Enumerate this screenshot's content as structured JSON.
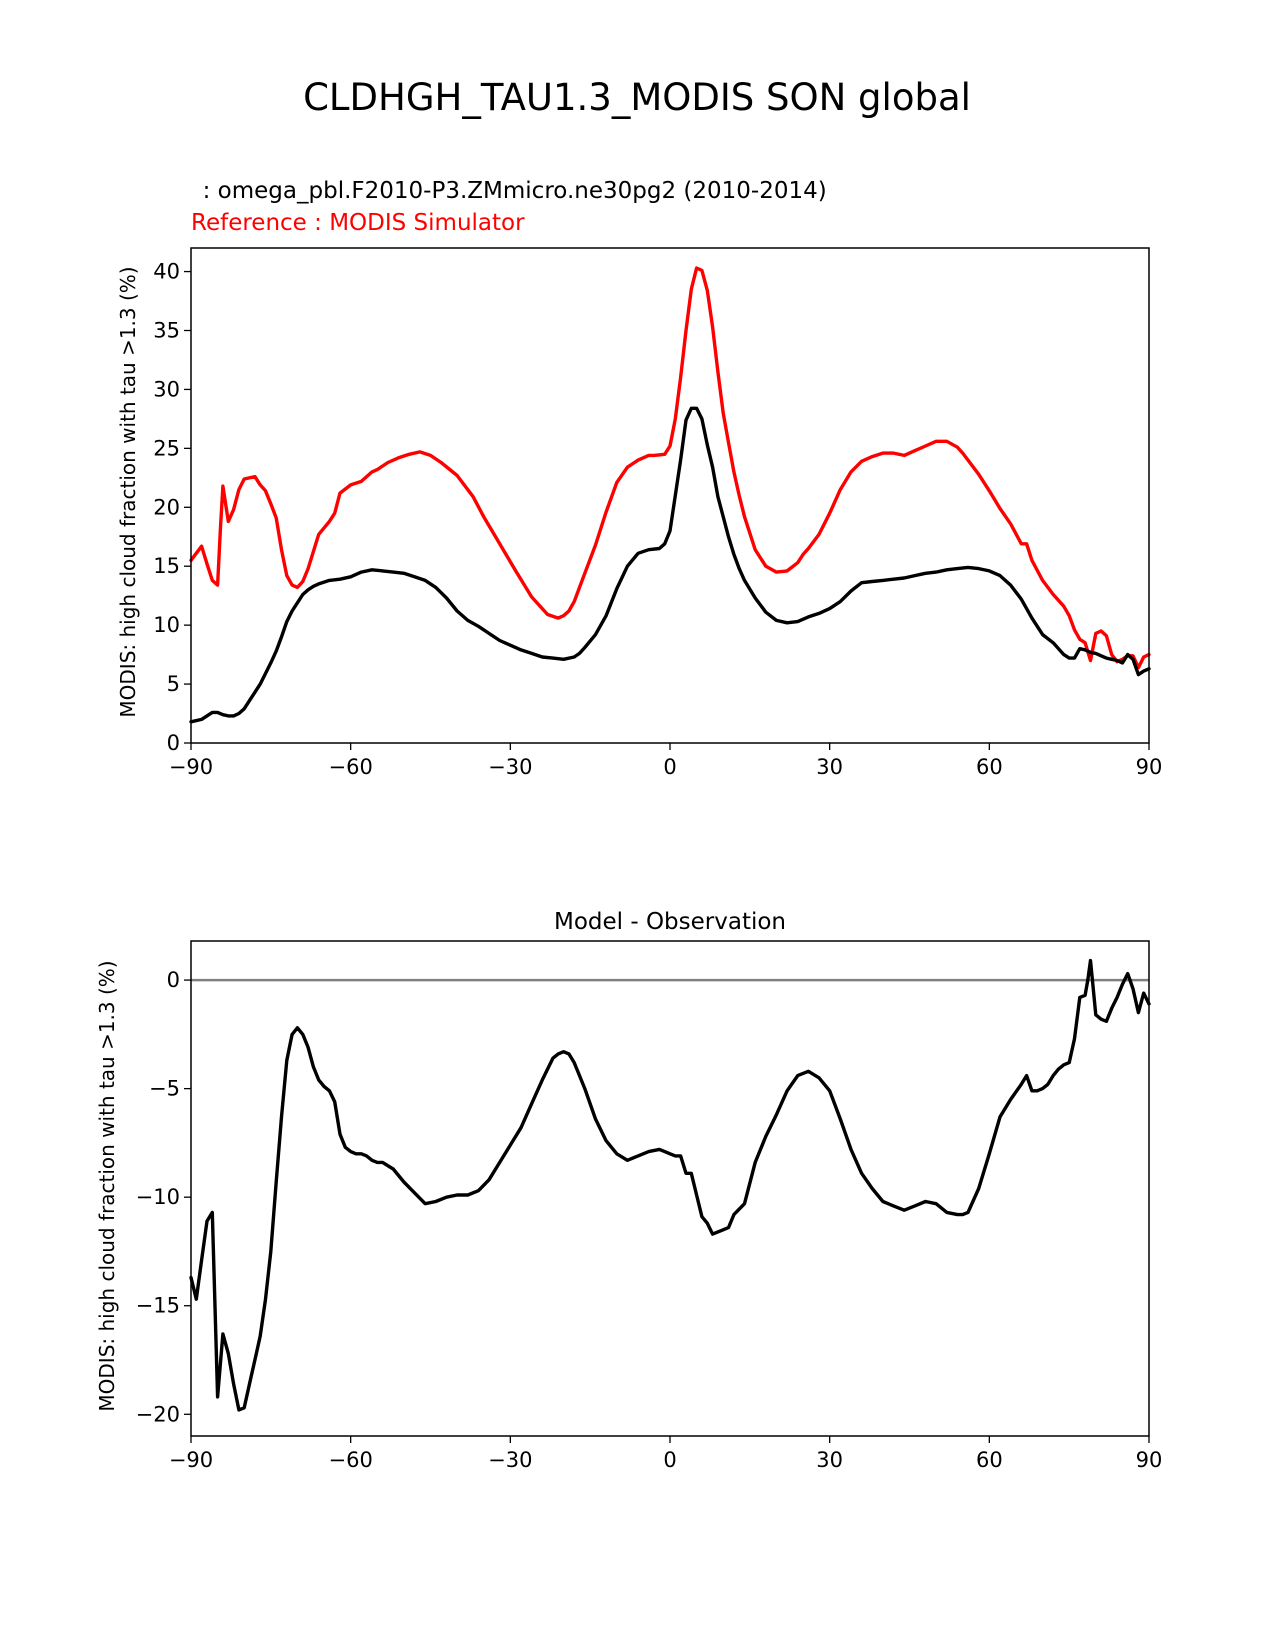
{
  "figure_title": "CLDHGH_TAU1.3_MODIS SON global",
  "chart_data": [
    {
      "type": "line",
      "test_label": "  : omega_pbl.F2010-P3.ZMmicro.ne30pg2 (2010-2014)",
      "reference_label": "Reference : MODIS Simulator",
      "ylabel": "MODIS: high cloud fraction with tau >1.3 (%)",
      "xlabel": "",
      "xlim": [
        -90,
        90
      ],
      "ylim": [
        0,
        42
      ],
      "xticks": [
        "−90",
        "−60",
        "−30",
        "0",
        "30",
        "60",
        "90"
      ],
      "xtick_values": [
        -90,
        -60,
        -30,
        0,
        30,
        60,
        90
      ],
      "yticks": [
        "0",
        "5",
        "10",
        "15",
        "20",
        "25",
        "30",
        "35",
        "40"
      ],
      "ytick_values": [
        0,
        5,
        10,
        15,
        20,
        25,
        30,
        35,
        40
      ],
      "series": [
        {
          "name": "Reference : MODIS Simulator",
          "color": "#ff0000",
          "x": [
            -90,
            -88,
            -87,
            -86,
            -85,
            -84.5,
            -84,
            -83,
            -82,
            -81,
            -80,
            -78,
            -77,
            -76,
            -75,
            -74,
            -73,
            -72,
            -71,
            -70,
            -69,
            -68,
            -66,
            -64,
            -63,
            -62,
            -60,
            -58,
            -56,
            -55,
            -53,
            -51,
            -49,
            -47,
            -45,
            -43,
            -40,
            -37,
            -35,
            -32,
            -29,
            -26,
            -23,
            -21,
            -20,
            -19,
            -18,
            -16,
            -14,
            -12,
            -10,
            -8,
            -6,
            -4,
            -3,
            -1,
            0,
            1,
            2,
            3,
            4,
            5,
            6,
            7,
            8,
            9,
            10,
            11,
            12,
            13,
            14,
            16,
            18,
            20,
            22,
            24,
            25,
            26,
            28,
            30,
            32,
            34,
            36,
            38,
            40,
            42,
            44,
            46,
            48,
            50,
            52,
            54,
            55,
            56,
            58,
            60,
            62,
            64,
            66,
            67,
            68,
            70,
            72,
            74,
            75,
            76,
            77,
            78,
            79,
            80,
            81,
            82,
            83,
            84,
            85,
            86,
            87,
            88,
            89,
            90
          ],
          "y": [
            15.5,
            16.7,
            15.2,
            13.8,
            13.4,
            18,
            21.8,
            18.8,
            19.8,
            21.5,
            22.4,
            22.6,
            21.9,
            21.4,
            20.3,
            19.1,
            16.4,
            14.2,
            13.4,
            13.2,
            13.7,
            14.8,
            17.7,
            18.8,
            19.5,
            21.2,
            21.9,
            22.2,
            23,
            23.2,
            23.8,
            24.2,
            24.5,
            24.7,
            24.4,
            23.8,
            22.7,
            20.9,
            19.2,
            16.9,
            14.6,
            12.4,
            10.9,
            10.6,
            10.8,
            11.2,
            12,
            14.4,
            16.8,
            19.6,
            22.1,
            23.4,
            24,
            24.4,
            24.4,
            24.5,
            25.2,
            27.5,
            31,
            35,
            38.5,
            40.3,
            40.1,
            38.4,
            35.3,
            31.5,
            28,
            25.5,
            23,
            21,
            19.2,
            16.4,
            15,
            14.5,
            14.6,
            15.3,
            16,
            16.5,
            17.7,
            19.5,
            21.5,
            23,
            23.9,
            24.3,
            24.6,
            24.6,
            24.4,
            24.8,
            25.2,
            25.6,
            25.6,
            25.1,
            24.6,
            24,
            22.8,
            21.4,
            19.9,
            18.6,
            16.9,
            16.9,
            15.5,
            13.8,
            12.6,
            11.6,
            10.8,
            9.6,
            8.8,
            8.5,
            7,
            9.3,
            9.5,
            9.1,
            7.5,
            6.9,
            7.1,
            7.4,
            7.4,
            6.4,
            7.3,
            7.5
          ]
        },
        {
          "name": "omega_pbl.F2010-P3.ZMmicro.ne30pg2",
          "color": "#000000",
          "x": [
            -90,
            -88,
            -86,
            -85,
            -84,
            -83,
            -82,
            -81,
            -80,
            -79,
            -78,
            -77,
            -76,
            -75,
            -74,
            -73,
            -72,
            -71,
            -70,
            -69,
            -68,
            -67,
            -66,
            -64,
            -62,
            -60,
            -58,
            -56,
            -54,
            -52,
            -50,
            -48,
            -46,
            -44,
            -42,
            -40,
            -38,
            -36,
            -34,
            -32,
            -30,
            -28,
            -26,
            -24,
            -22,
            -20,
            -18,
            -17,
            -16,
            -14,
            -12,
            -10,
            -8,
            -6,
            -4,
            -2,
            -1,
            0,
            1,
            2,
            3,
            4,
            5,
            6,
            7,
            8,
            9,
            10,
            11,
            12,
            13,
            14,
            16,
            18,
            20,
            22,
            24,
            26,
            28,
            30,
            32,
            34,
            36,
            38,
            40,
            42,
            44,
            46,
            48,
            50,
            52,
            54,
            56,
            58,
            60,
            62,
            64,
            66,
            68,
            70,
            72,
            74,
            75,
            76,
            77,
            78,
            79,
            80,
            81,
            82,
            83,
            84,
            85,
            86,
            87,
            88,
            89,
            90
          ],
          "y": [
            1.8,
            2.0,
            2.6,
            2.6,
            2.4,
            2.3,
            2.3,
            2.5,
            2.9,
            3.6,
            4.3,
            5.0,
            5.9,
            6.8,
            7.8,
            9.0,
            10.3,
            11.2,
            11.9,
            12.6,
            13.0,
            13.3,
            13.5,
            13.8,
            13.9,
            14.1,
            14.5,
            14.7,
            14.6,
            14.5,
            14.4,
            14.1,
            13.8,
            13.2,
            12.3,
            11.2,
            10.4,
            9.9,
            9.3,
            8.7,
            8.3,
            7.9,
            7.6,
            7.3,
            7.2,
            7.1,
            7.3,
            7.6,
            8.1,
            9.2,
            10.8,
            13.1,
            15.0,
            16.1,
            16.4,
            16.5,
            16.9,
            18.0,
            21.0,
            24.0,
            27.4,
            28.4,
            28.4,
            27.5,
            25.3,
            23.4,
            20.9,
            19.2,
            17.5,
            16.0,
            14.8,
            13.8,
            12.3,
            11.1,
            10.4,
            10.2,
            10.3,
            10.7,
            11.0,
            11.4,
            12.0,
            12.9,
            13.6,
            13.7,
            13.8,
            13.9,
            14.0,
            14.2,
            14.4,
            14.5,
            14.7,
            14.8,
            14.9,
            14.8,
            14.6,
            14.2,
            13.4,
            12.2,
            10.6,
            9.2,
            8.5,
            7.5,
            7.2,
            7.2,
            8.0,
            7.9,
            7.7,
            7.6,
            7.4,
            7.2,
            7.1,
            7.0,
            6.8,
            7.5,
            7.1,
            5.8,
            6.1,
            6.3
          ]
        }
      ]
    },
    {
      "type": "line",
      "title": "Model - Observation",
      "ylabel": "MODIS: high cloud fraction with tau >1.3 (%)",
      "xlabel": "",
      "xlim": [
        -90,
        90
      ],
      "ylim": [
        -21,
        1.8
      ],
      "xticks": [
        "−90",
        "−60",
        "−30",
        "0",
        "30",
        "60",
        "90"
      ],
      "xtick_values": [
        -90,
        -60,
        -30,
        0,
        30,
        60,
        90
      ],
      "yticks": [
        "−20",
        "−15",
        "−10",
        "−5",
        "0"
      ],
      "ytick_values": [
        -20,
        -15,
        -10,
        -5,
        0
      ],
      "zero_line_color": "#808080",
      "series": [
        {
          "name": "Model - Observation",
          "color": "#000000",
          "x": [
            -90,
            -89,
            -88,
            -87,
            -86,
            -85,
            -84,
            -83,
            -82,
            -81,
            -80,
            -79,
            -78,
            -77,
            -76,
            -75,
            -74,
            -73,
            -72,
            -71,
            -70,
            -69,
            -68,
            -67,
            -66,
            -65,
            -64,
            -63,
            -62,
            -61,
            -60,
            -59,
            -58,
            -57,
            -56,
            -55,
            -54,
            -52,
            -50,
            -48,
            -46,
            -44,
            -42,
            -40,
            -38,
            -36,
            -34,
            -32,
            -30,
            -28,
            -26,
            -24,
            -22,
            -21,
            -20,
            -19,
            -18,
            -16,
            -14,
            -12,
            -10,
            -8,
            -6,
            -4,
            -2,
            -1,
            0,
            1,
            2,
            3,
            4,
            5,
            6,
            7,
            8,
            9,
            10,
            11,
            12,
            14,
            16,
            18,
            20,
            22,
            24,
            26,
            28,
            30,
            32,
            34,
            36,
            38,
            40,
            42,
            44,
            46,
            48,
            50,
            52,
            54,
            55,
            56,
            58,
            60,
            62,
            64,
            66,
            67,
            68,
            69,
            70,
            71,
            72,
            73,
            74,
            75,
            76,
            77,
            78,
            78.5,
            79,
            80,
            81,
            82,
            83,
            84,
            85,
            86,
            87,
            88,
            89,
            90
          ],
          "y": [
            -13.7,
            -14.7,
            -12.9,
            -11.1,
            -10.7,
            -19.2,
            -16.3,
            -17.2,
            -18.6,
            -19.8,
            -19.7,
            -18.6,
            -17.5,
            -16.4,
            -14.7,
            -12.5,
            -9.3,
            -6.3,
            -3.7,
            -2.5,
            -2.2,
            -2.5,
            -3.1,
            -4,
            -4.6,
            -4.9,
            -5.1,
            -5.6,
            -7.1,
            -7.7,
            -7.9,
            -8,
            -8,
            -8.1,
            -8.3,
            -8.4,
            -8.4,
            -8.7,
            -9.3,
            -9.8,
            -10.3,
            -10.2,
            -10,
            -9.9,
            -9.9,
            -9.7,
            -9.2,
            -8.4,
            -7.6,
            -6.8,
            -5.7,
            -4.6,
            -3.6,
            -3.4,
            -3.3,
            -3.4,
            -3.8,
            -5,
            -6.4,
            -7.4,
            -8,
            -8.3,
            -8.1,
            -7.9,
            -7.8,
            -7.9,
            -8,
            -8.1,
            -8.1,
            -8.9,
            -8.9,
            -9.9,
            -10.9,
            -11.2,
            -11.7,
            -11.6,
            -11.5,
            -11.4,
            -10.8,
            -10.3,
            -8.4,
            -7.2,
            -6.2,
            -5.1,
            -4.4,
            -4.2,
            -4.5,
            -5.1,
            -6.4,
            -7.8,
            -8.9,
            -9.6,
            -10.2,
            -10.4,
            -10.6,
            -10.4,
            -10.2,
            -10.3,
            -10.7,
            -10.8,
            -10.8,
            -10.7,
            -9.6,
            -8,
            -6.3,
            -5.5,
            -4.8,
            -4.4,
            -5.1,
            -5.1,
            -5,
            -4.8,
            -4.4,
            -4.1,
            -3.9,
            -3.8,
            -2.7,
            -0.8,
            -0.7,
            0,
            0.9,
            -1.6,
            -1.8,
            -1.9,
            -1.3,
            -0.8,
            -0.2,
            0.3,
            -0.4,
            -1.5,
            -0.6,
            -1.1
          ]
        }
      ]
    }
  ]
}
